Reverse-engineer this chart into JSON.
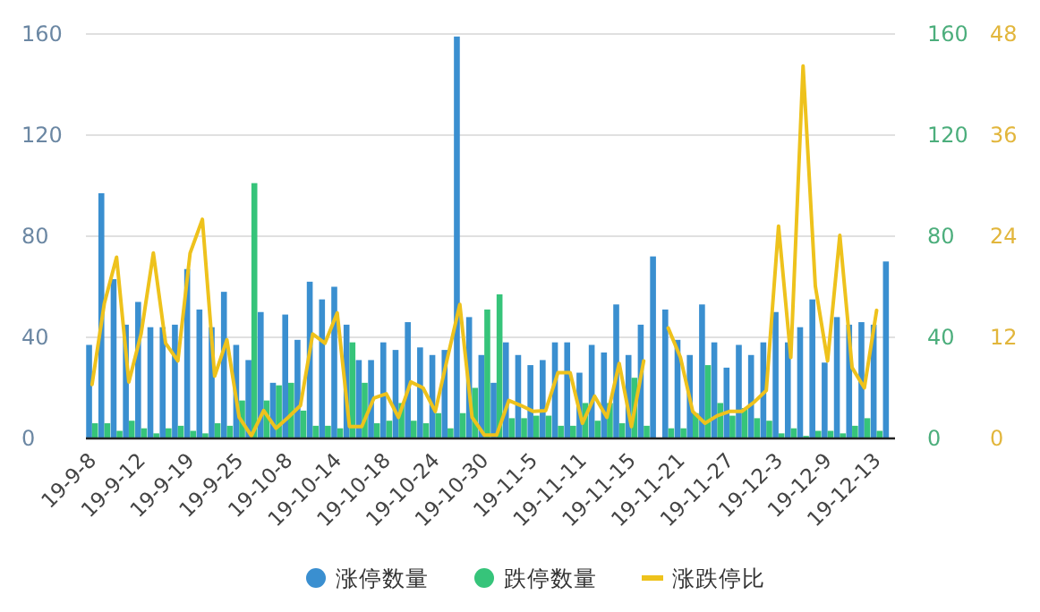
{
  "chart_data": {
    "type": "bar",
    "categories": [
      "19-9-8",
      null,
      null,
      null,
      "19-9-12",
      null,
      null,
      null,
      "19-9-19",
      null,
      null,
      null,
      "19-9-25",
      null,
      null,
      null,
      "19-10-8",
      null,
      null,
      null,
      "19-10-14",
      null,
      null,
      null,
      "19-10-18",
      null,
      null,
      null,
      "19-10-24",
      null,
      null,
      null,
      "19-10-30",
      null,
      null,
      null,
      "19-11-5",
      null,
      null,
      null,
      "19-11-11",
      null,
      null,
      null,
      "19-11-15",
      null,
      null,
      null,
      "19-11-21",
      null,
      null,
      null,
      "19-11-27",
      null,
      null,
      null,
      "19-12-3",
      null,
      null,
      null,
      "19-12-9",
      null,
      null,
      null,
      "19-12-13",
      null
    ],
    "series": [
      {
        "name": "涨停数量",
        "color": "#3a8fd0",
        "values": [
          37,
          97,
          63,
          45,
          54,
          44,
          44,
          45,
          67,
          51,
          44,
          58,
          37,
          31,
          50,
          22,
          49,
          39,
          62,
          55,
          60,
          45,
          31,
          31,
          38,
          35,
          46,
          36,
          33,
          35,
          159,
          48,
          33,
          22,
          38,
          33,
          29,
          31,
          38,
          38,
          26,
          37,
          34,
          53,
          33,
          45,
          72,
          51,
          39,
          33,
          53,
          38,
          28,
          37,
          33,
          38,
          50,
          38,
          44,
          55,
          30,
          48,
          45,
          46,
          45,
          70
        ]
      },
      {
        "name": "跌停数量",
        "color": "#36c47a",
        "axis": "y2",
        "values": [
          6,
          6,
          3,
          7,
          4,
          2,
          4,
          5,
          3,
          2,
          6,
          5,
          15,
          101,
          15,
          21,
          22,
          11,
          5,
          5,
          4,
          38,
          22,
          6,
          7,
          14,
          7,
          6,
          10,
          4,
          10,
          20,
          51,
          57,
          8,
          8,
          9,
          9,
          5,
          5,
          14,
          7,
          14,
          6,
          24,
          5,
          0,
          4,
          4,
          10,
          29,
          14,
          9,
          12,
          8,
          7,
          2,
          4,
          1,
          3,
          3,
          2,
          5,
          8,
          3,
          0
        ]
      },
      {
        "name": "涨跌停比",
        "color": "#eec21c",
        "type": "line",
        "axis": "y3",
        "values": [
          6.4,
          16,
          21.5,
          6.7,
          12.4,
          22,
          11.3,
          9.2,
          22,
          26,
          7.4,
          11.7,
          2.5,
          0.3,
          3.3,
          1.2,
          2.5,
          3.9,
          12.4,
          11.3,
          14.9,
          1.4,
          1.4,
          4.8,
          5.3,
          2.5,
          6.7,
          6,
          3.2,
          9.6,
          15.9,
          2.5,
          0.4,
          0.4,
          4.5,
          3.9,
          3.2,
          3.3,
          7.8,
          7.8,
          1.8,
          5,
          2.5,
          8.9,
          1.4,
          9.2,
          null,
          13.1,
          9.6,
          3.2,
          1.8,
          2.7,
          3.2,
          3.2,
          4.3,
          5.7,
          25.2,
          9.6,
          44.2,
          18.1,
          9.2,
          24.1,
          8.4,
          6,
          15.2,
          null
        ]
      }
    ],
    "ylim": [
      0,
      160
    ],
    "yticks": [
      0,
      40,
      80,
      120,
      160
    ],
    "y2lim": [
      0,
      160
    ],
    "y2ticks": [
      0,
      40,
      80,
      120,
      160
    ],
    "y3lim": [
      0,
      48
    ],
    "y3ticks": [
      0,
      12,
      24,
      36,
      48
    ],
    "grid": "y",
    "legend": "bottom"
  }
}
